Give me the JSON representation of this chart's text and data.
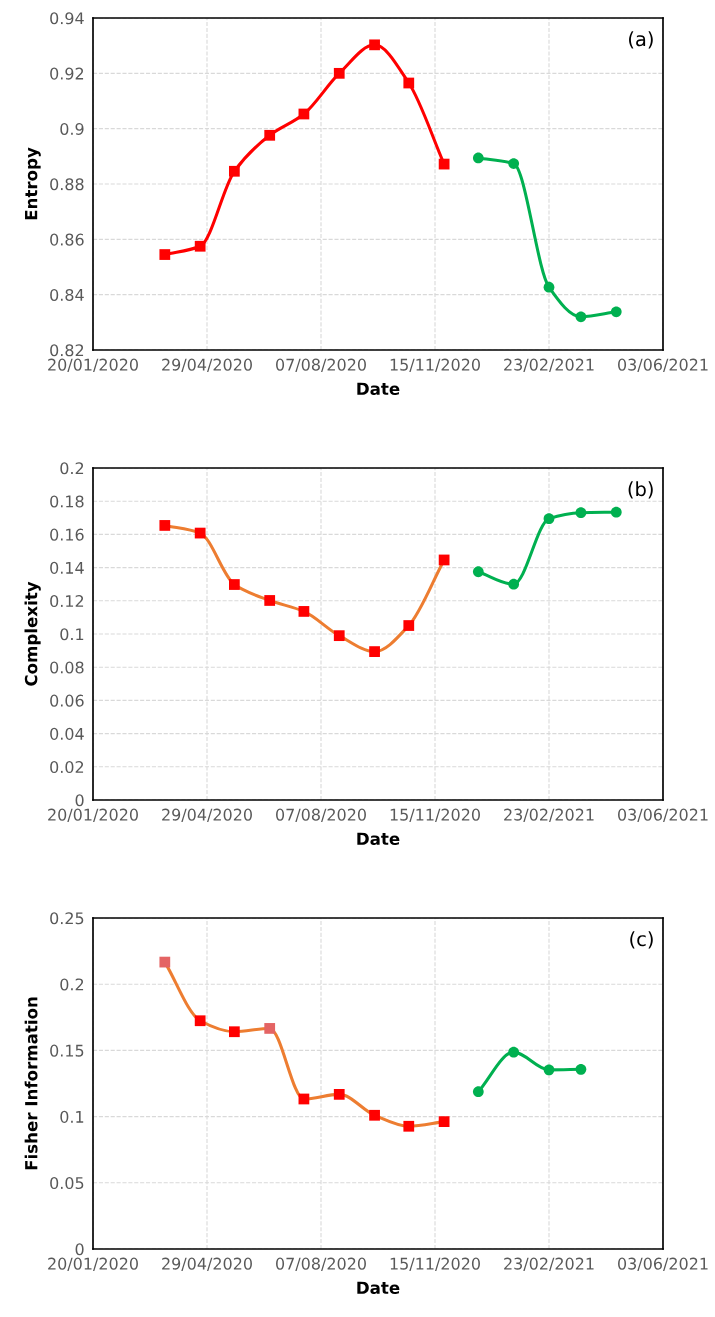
{
  "chart_data": [
    {
      "type": "line",
      "xlabel": "Date",
      "ylabel": "Entropy",
      "annotations": [
        "(a)"
      ],
      "xlim": [
        "2020-01-20",
        "2021-06-03"
      ],
      "xticks": [
        {
          "value": "2020-01-20",
          "label": "20/01/2020"
        },
        {
          "value": "2020-04-29",
          "label": "29/04/2020"
        },
        {
          "value": "2020-08-07",
          "label": "07/08/2020"
        },
        {
          "value": "2020-11-15",
          "label": "15/11/2020"
        },
        {
          "value": "2021-02-23",
          "label": "23/02/2021"
        },
        {
          "value": "2021-06-03",
          "label": "03/06/2021"
        }
      ],
      "ylim": [
        0.82,
        0.94
      ],
      "yticks": [
        0.82,
        0.84,
        0.86,
        0.88,
        0.9,
        0.92,
        0.94
      ],
      "grid": true,
      "legend": false,
      "line_style": "solid",
      "series": [
        {
          "color": "#ff0000",
          "colors": [
            "#ff0000",
            "#ff0000",
            "#ff0000",
            "#ff0000",
            "#ff0000",
            "#ff0000",
            "#ff0000",
            "#ff0000",
            "#ff0000"
          ],
          "marker": "square",
          "x": [
            "2020-03-23",
            "2020-04-23",
            "2020-05-23",
            "2020-06-23",
            "2020-07-23",
            "2020-08-23",
            "2020-09-23",
            "2020-10-23",
            "2020-11-23"
          ],
          "values": [
            0.8545,
            0.8575,
            0.8846,
            0.8976,
            0.9053,
            0.92,
            0.9303,
            0.9165,
            0.8872
          ]
        },
        {
          "color": "#00b050",
          "colors": [
            "#00b050",
            "#00b050",
            "#00b050",
            "#00b050",
            "#00b050"
          ],
          "marker": "circle",
          "x": [
            "2020-12-23",
            "2021-01-23",
            "2021-02-23",
            "2021-03-23",
            "2021-04-23"
          ],
          "values": [
            0.8894,
            0.8874,
            0.8427,
            0.832,
            0.8338
          ]
        }
      ]
    },
    {
      "type": "line",
      "xlabel": "Date",
      "ylabel": "Complexity",
      "annotations": [
        "(b)"
      ],
      "xlim": [
        "2020-01-20",
        "2021-06-03"
      ],
      "xticks": [
        {
          "value": "2020-01-20",
          "label": "20/01/2020"
        },
        {
          "value": "2020-04-29",
          "label": "29/04/2020"
        },
        {
          "value": "2020-08-07",
          "label": "07/08/2020"
        },
        {
          "value": "2020-11-15",
          "label": "15/11/2020"
        },
        {
          "value": "2021-02-23",
          "label": "23/02/2021"
        },
        {
          "value": "2021-06-03",
          "label": "03/06/2021"
        }
      ],
      "ylim": [
        0,
        0.2
      ],
      "yticks": [
        0,
        0.02,
        0.04,
        0.06,
        0.08,
        0.1,
        0.12,
        0.14,
        0.16,
        0.18,
        0.2
      ],
      "grid": true,
      "legend": false,
      "line_style": "solid",
      "series": [
        {
          "color": "#ed7d31",
          "colors": [
            "#ff0000",
            "#ff0000",
            "#ff0000",
            "#ff0000",
            "#ff0000",
            "#ff0000",
            "#ff0000",
            "#ff0000",
            "#ff0000"
          ],
          "marker": "square",
          "x": [
            "2020-03-23",
            "2020-04-23",
            "2020-05-23",
            "2020-06-23",
            "2020-07-23",
            "2020-08-23",
            "2020-09-23",
            "2020-10-23",
            "2020-11-23"
          ],
          "values": [
            0.1654,
            0.1608,
            0.1298,
            0.1202,
            0.1136,
            0.099,
            0.0894,
            0.1051,
            0.1446
          ]
        },
        {
          "color": "#00b050",
          "colors": [
            "#00b050",
            "#00b050",
            "#00b050",
            "#00b050",
            "#00b050"
          ],
          "marker": "circle",
          "x": [
            "2020-12-23",
            "2021-01-23",
            "2021-02-23",
            "2021-03-23",
            "2021-04-23"
          ],
          "values": [
            0.1375,
            0.13,
            0.1695,
            0.1731,
            0.1734
          ]
        }
      ]
    },
    {
      "type": "line",
      "xlabel": "Date",
      "ylabel": "Fisher Information",
      "annotations": [
        "(c)"
      ],
      "xlim": [
        "2020-01-20",
        "2021-06-03"
      ],
      "xticks": [
        {
          "value": "2020-01-20",
          "label": "20/01/2020"
        },
        {
          "value": "2020-04-29",
          "label": "29/04/2020"
        },
        {
          "value": "2020-08-07",
          "label": "07/08/2020"
        },
        {
          "value": "2020-11-15",
          "label": "15/11/2020"
        },
        {
          "value": "2021-02-23",
          "label": "23/02/2021"
        },
        {
          "value": "2021-06-03",
          "label": "03/06/2021"
        }
      ],
      "ylim": [
        0,
        0.25
      ],
      "yticks": [
        0,
        0.05,
        0.1,
        0.15,
        0.2,
        0.25
      ],
      "grid": true,
      "legend": false,
      "line_style": "solid",
      "series": [
        {
          "color": "#ed7d31",
          "colors": [
            "#e46464",
            "#ff0000",
            "#ff0000",
            "#e46464",
            "#ff0000",
            "#ff0000",
            "#ff0000",
            "#ff0000",
            "#ff0000"
          ],
          "marker": "square",
          "x": [
            "2020-03-23",
            "2020-04-23",
            "2020-05-23",
            "2020-06-23",
            "2020-07-23",
            "2020-08-23",
            "2020-09-23",
            "2020-10-23",
            "2020-11-23"
          ],
          "values": [
            0.2167,
            0.1724,
            0.1641,
            0.1666,
            0.1133,
            0.1168,
            0.101,
            0.0927,
            0.0962
          ]
        },
        {
          "color": "#00b050",
          "colors": [
            "#00b050",
            "#00b050",
            "#00b050",
            "#00b050"
          ],
          "marker": "circle",
          "x": [
            "2020-12-23",
            "2021-01-23",
            "2021-02-23",
            "2021-03-23"
          ],
          "values": [
            0.1188,
            0.1487,
            0.1353,
            0.1357
          ]
        }
      ]
    }
  ]
}
